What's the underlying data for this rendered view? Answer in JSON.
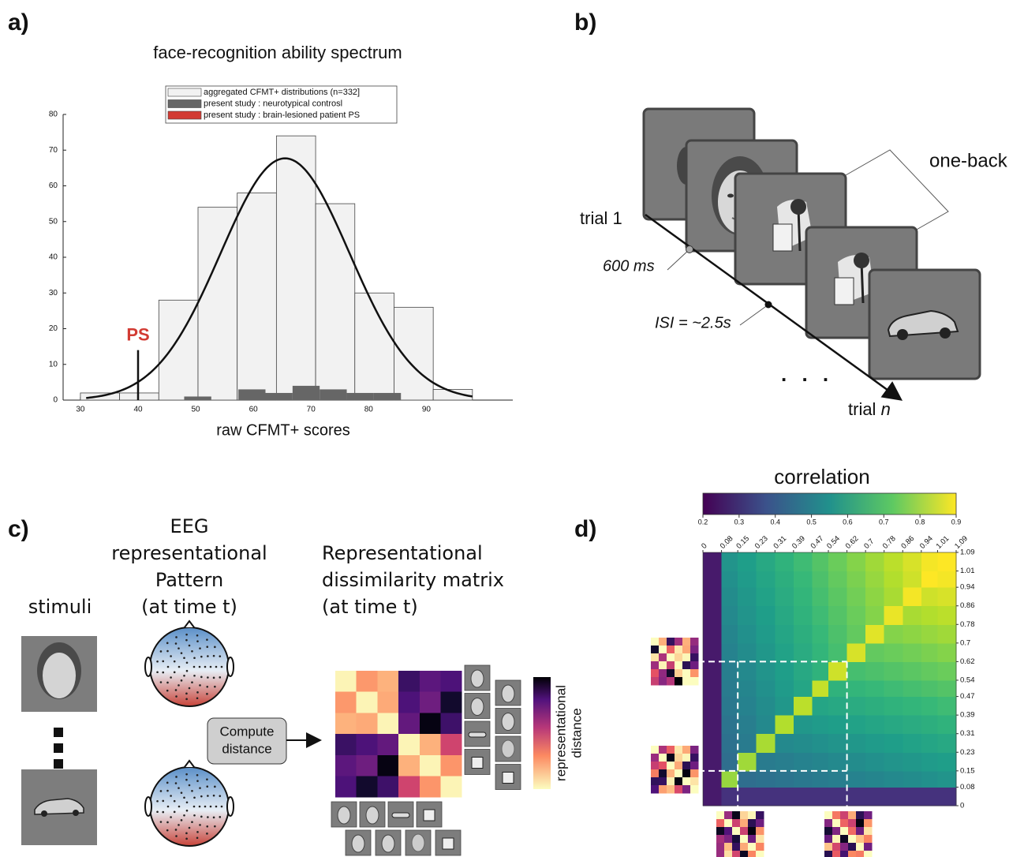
{
  "panel_labels": [
    "a)",
    "b)",
    "c)",
    "d)"
  ],
  "chart_data": [
    {
      "type": "histogram",
      "title": "face-recognition ability spectrum",
      "x_label": "raw CFMT+ scores",
      "xlim": [
        27,
        105
      ],
      "ylim": [
        0,
        80
      ],
      "xticks": [
        30,
        40,
        50,
        60,
        70,
        80,
        90
      ],
      "yticks": [
        0,
        10,
        20,
        30,
        40,
        50,
        60,
        70,
        80
      ],
      "series": [
        {
          "name": "aggregated CFMT+ distributions (n=332]",
          "color": "#f2f2f2",
          "bins": [
            30,
            36.8,
            43.6,
            50.4,
            57.2,
            64,
            70.8,
            77.6,
            84.4,
            91.2,
            98
          ],
          "values": [
            2,
            2,
            28,
            54,
            58,
            74,
            55,
            30,
            26,
            3
          ]
        },
        {
          "name": "present study : neurotypical controsl",
          "color": "#666666",
          "bins": [
            48,
            52.7,
            57.4,
            62.1,
            66.8,
            71.5,
            76.2,
            80.9,
            85.6
          ],
          "values": [
            1,
            0,
            3,
            2,
            4,
            3,
            2,
            2
          ]
        },
        {
          "name": "present study : brain-lesioned patient PS",
          "color": "#d23b33",
          "label": "PS",
          "x": 40,
          "value": 14
        }
      ],
      "fit_curve": {
        "mean": 65.5,
        "sd": 11.2,
        "peak": 67.7,
        "xlim": [
          31,
          98
        ]
      }
    },
    {
      "type": "heatmap",
      "colorbar_title": "correlation",
      "colormap": "viridis",
      "clim": [
        0.2,
        0.9
      ],
      "cticks": [
        0.2,
        0.3,
        0.4,
        0.5,
        0.6,
        0.7,
        0.8,
        0.9
      ],
      "xlim": [
        0,
        1.09
      ],
      "ylim": [
        0,
        1.09
      ],
      "xticks": [
        0,
        0.08,
        0.15,
        0.23,
        0.31,
        0.39,
        0.47,
        0.54,
        0.62,
        0.7,
        0.78,
        0.86,
        0.94,
        1.01,
        1.09
      ],
      "yticks": [
        0,
        0.08,
        0.15,
        0.23,
        0.31,
        0.39,
        0.47,
        0.54,
        0.62,
        0.7,
        0.78,
        0.86,
        0.94,
        1.01,
        1.09
      ],
      "highlight": [
        0.15,
        0.62
      ],
      "values": [
        [
          0.25,
          0.3,
          0.3,
          0.3,
          0.3,
          0.3,
          0.3,
          0.3,
          0.3,
          0.3,
          0.3,
          0.3,
          0.3,
          0.3
        ],
        [
          0.25,
          0.79,
          0.45,
          0.46,
          0.47,
          0.48,
          0.49,
          0.5,
          0.51,
          0.52,
          0.53,
          0.54,
          0.55,
          0.56
        ],
        [
          0.25,
          0.45,
          0.8,
          0.49,
          0.5,
          0.51,
          0.52,
          0.53,
          0.54,
          0.55,
          0.56,
          0.57,
          0.58,
          0.59
        ],
        [
          0.25,
          0.46,
          0.49,
          0.81,
          0.53,
          0.54,
          0.55,
          0.56,
          0.57,
          0.58,
          0.59,
          0.6,
          0.61,
          0.62
        ],
        [
          0.25,
          0.47,
          0.5,
          0.53,
          0.82,
          0.57,
          0.58,
          0.59,
          0.6,
          0.61,
          0.62,
          0.63,
          0.64,
          0.65
        ],
        [
          0.25,
          0.48,
          0.51,
          0.54,
          0.57,
          0.83,
          0.61,
          0.62,
          0.63,
          0.64,
          0.65,
          0.66,
          0.67,
          0.68
        ],
        [
          0.25,
          0.49,
          0.52,
          0.55,
          0.58,
          0.61,
          0.84,
          0.65,
          0.66,
          0.67,
          0.68,
          0.69,
          0.7,
          0.71
        ],
        [
          0.25,
          0.5,
          0.53,
          0.56,
          0.59,
          0.62,
          0.65,
          0.85,
          0.69,
          0.7,
          0.71,
          0.72,
          0.73,
          0.74
        ],
        [
          0.25,
          0.51,
          0.54,
          0.57,
          0.6,
          0.63,
          0.66,
          0.69,
          0.86,
          0.73,
          0.74,
          0.75,
          0.76,
          0.77
        ],
        [
          0.25,
          0.52,
          0.55,
          0.58,
          0.61,
          0.64,
          0.67,
          0.7,
          0.73,
          0.87,
          0.77,
          0.78,
          0.79,
          0.8
        ],
        [
          0.25,
          0.53,
          0.56,
          0.59,
          0.62,
          0.65,
          0.68,
          0.71,
          0.74,
          0.77,
          0.88,
          0.81,
          0.82,
          0.83
        ],
        [
          0.25,
          0.54,
          0.57,
          0.6,
          0.63,
          0.66,
          0.69,
          0.72,
          0.75,
          0.78,
          0.81,
          0.89,
          0.85,
          0.86
        ],
        [
          0.25,
          0.55,
          0.58,
          0.61,
          0.64,
          0.67,
          0.7,
          0.73,
          0.76,
          0.79,
          0.82,
          0.85,
          0.9,
          0.89
        ],
        [
          0.25,
          0.56,
          0.59,
          0.62,
          0.65,
          0.68,
          0.71,
          0.74,
          0.77,
          0.8,
          0.83,
          0.86,
          0.89,
          0.91
        ]
      ]
    }
  ],
  "paradigm": {
    "one_back": "one-back",
    "trial_first": "trial 1",
    "duration": "600 ms",
    "isi": "ISI = ~2.5s",
    "trial_last": "trial",
    "trial_last_index": "n",
    "ellipsis": ". . ."
  },
  "rsa": {
    "stimuli": "stimuli",
    "eeg_title": [
      "EEG",
      "representational",
      "Pattern",
      "(at time t)"
    ],
    "rdm_title": [
      "Representational",
      "dissimilarity matrix",
      "(at time t)"
    ],
    "compute": [
      "Compute",
      "distance"
    ],
    "colorbar_label": [
      "representational",
      "distance"
    ]
  }
}
